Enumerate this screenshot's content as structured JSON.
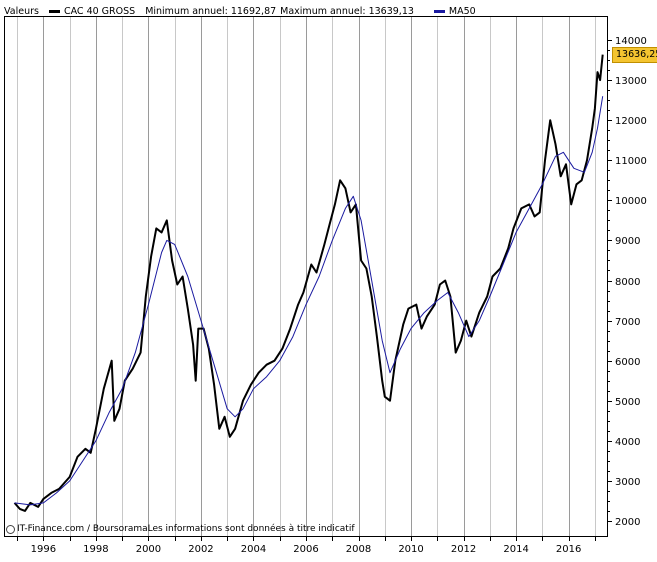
{
  "legend": {
    "label": "Valeurs",
    "series_name": "CAC 40 GROSS",
    "min_label": "Minimum annuel: 11692,87",
    "max_label": "Maximum annuel: 13639,13",
    "ma_name": "MA50",
    "series_color": "#000000",
    "ma_color": "#1a1aa0"
  },
  "last_value_badge": "13636,25",
  "copyright": "IT-Finance.com / BoursoramaLes informations sont données à titre indicatif",
  "chart_data": {
    "type": "line",
    "title": "",
    "xlabel": "",
    "ylabel": "",
    "xlim": [
      1994.5,
      2017.5
    ],
    "ylim": [
      1600,
      14600
    ],
    "y_axis_side": "right",
    "x_ticks": [
      1996,
      1998,
      2000,
      2002,
      2004,
      2006,
      2008,
      2010,
      2012,
      2014,
      2016
    ],
    "y_ticks": [
      2000,
      3000,
      4000,
      5000,
      6000,
      7000,
      8000,
      9000,
      10000,
      11000,
      12000,
      13000,
      14000
    ],
    "grid": "vertical",
    "legend_position": "top",
    "series": [
      {
        "name": "CAC 40 GROSS",
        "color": "#000000",
        "points": [
          [
            1994.9,
            2450
          ],
          [
            1995.1,
            2300
          ],
          [
            1995.3,
            2250
          ],
          [
            1995.5,
            2450
          ],
          [
            1995.8,
            2350
          ],
          [
            1996.0,
            2550
          ],
          [
            1996.3,
            2700
          ],
          [
            1996.6,
            2800
          ],
          [
            1997.0,
            3100
          ],
          [
            1997.3,
            3600
          ],
          [
            1997.6,
            3800
          ],
          [
            1997.8,
            3700
          ],
          [
            1998.0,
            4300
          ],
          [
            1998.3,
            5300
          ],
          [
            1998.6,
            6000
          ],
          [
            1998.7,
            4500
          ],
          [
            1998.9,
            4800
          ],
          [
            1999.1,
            5500
          ],
          [
            1999.4,
            5800
          ],
          [
            1999.7,
            6200
          ],
          [
            1999.9,
            7600
          ],
          [
            2000.1,
            8600
          ],
          [
            2000.3,
            9300
          ],
          [
            2000.5,
            9200
          ],
          [
            2000.7,
            9500
          ],
          [
            2000.9,
            8500
          ],
          [
            2001.1,
            7900
          ],
          [
            2001.3,
            8100
          ],
          [
            2001.5,
            7300
          ],
          [
            2001.7,
            6400
          ],
          [
            2001.8,
            5500
          ],
          [
            2001.9,
            6800
          ],
          [
            2002.1,
            6800
          ],
          [
            2002.3,
            6300
          ],
          [
            2002.5,
            5400
          ],
          [
            2002.7,
            4300
          ],
          [
            2002.9,
            4600
          ],
          [
            2003.1,
            4100
          ],
          [
            2003.3,
            4300
          ],
          [
            2003.6,
            5000
          ],
          [
            2003.9,
            5400
          ],
          [
            2004.2,
            5700
          ],
          [
            2004.5,
            5900
          ],
          [
            2004.8,
            6000
          ],
          [
            2005.1,
            6300
          ],
          [
            2005.4,
            6800
          ],
          [
            2005.7,
            7400
          ],
          [
            2005.9,
            7700
          ],
          [
            2006.2,
            8400
          ],
          [
            2006.4,
            8200
          ],
          [
            2006.7,
            8900
          ],
          [
            2006.9,
            9400
          ],
          [
            2007.1,
            9900
          ],
          [
            2007.3,
            10500
          ],
          [
            2007.5,
            10300
          ],
          [
            2007.7,
            9700
          ],
          [
            2007.9,
            9900
          ],
          [
            2008.1,
            8500
          ],
          [
            2008.3,
            8300
          ],
          [
            2008.5,
            7600
          ],
          [
            2008.7,
            6600
          ],
          [
            2008.9,
            5500
          ],
          [
            2009.0,
            5100
          ],
          [
            2009.2,
            5000
          ],
          [
            2009.4,
            6000
          ],
          [
            2009.7,
            6900
          ],
          [
            2009.9,
            7300
          ],
          [
            2010.2,
            7400
          ],
          [
            2010.4,
            6800
          ],
          [
            2010.6,
            7100
          ],
          [
            2010.9,
            7400
          ],
          [
            2011.1,
            7900
          ],
          [
            2011.3,
            8000
          ],
          [
            2011.5,
            7600
          ],
          [
            2011.7,
            6200
          ],
          [
            2011.9,
            6500
          ],
          [
            2012.1,
            7000
          ],
          [
            2012.3,
            6600
          ],
          [
            2012.6,
            7200
          ],
          [
            2012.9,
            7600
          ],
          [
            2013.1,
            8100
          ],
          [
            2013.4,
            8300
          ],
          [
            2013.7,
            8800
          ],
          [
            2013.9,
            9300
          ],
          [
            2014.2,
            9800
          ],
          [
            2014.5,
            9900
          ],
          [
            2014.7,
            9600
          ],
          [
            2014.9,
            9700
          ],
          [
            2015.1,
            11000
          ],
          [
            2015.3,
            12000
          ],
          [
            2015.5,
            11400
          ],
          [
            2015.7,
            10600
          ],
          [
            2015.9,
            10900
          ],
          [
            2016.1,
            9900
          ],
          [
            2016.3,
            10400
          ],
          [
            2016.5,
            10500
          ],
          [
            2016.7,
            11000
          ],
          [
            2016.9,
            11800
          ],
          [
            2017.0,
            12300
          ],
          [
            2017.1,
            13200
          ],
          [
            2017.2,
            13000
          ],
          [
            2017.3,
            13636
          ]
        ]
      },
      {
        "name": "MA50",
        "color": "#1a1aa0",
        "points": [
          [
            1994.9,
            2450
          ],
          [
            1995.5,
            2400
          ],
          [
            1996.0,
            2450
          ],
          [
            1996.5,
            2700
          ],
          [
            1997.0,
            3000
          ],
          [
            1997.5,
            3500
          ],
          [
            1998.0,
            4000
          ],
          [
            1998.5,
            4700
          ],
          [
            1999.0,
            5300
          ],
          [
            1999.5,
            6200
          ],
          [
            2000.0,
            7400
          ],
          [
            2000.5,
            8700
          ],
          [
            2000.7,
            9000
          ],
          [
            2001.0,
            8900
          ],
          [
            2001.5,
            8100
          ],
          [
            2002.0,
            7000
          ],
          [
            2002.5,
            5900
          ],
          [
            2003.0,
            4800
          ],
          [
            2003.3,
            4600
          ],
          [
            2003.6,
            4800
          ],
          [
            2004.0,
            5300
          ],
          [
            2004.5,
            5600
          ],
          [
            2005.0,
            6000
          ],
          [
            2005.5,
            6600
          ],
          [
            2006.0,
            7400
          ],
          [
            2006.5,
            8100
          ],
          [
            2007.0,
            9000
          ],
          [
            2007.5,
            9800
          ],
          [
            2007.8,
            10100
          ],
          [
            2008.1,
            9500
          ],
          [
            2008.5,
            8000
          ],
          [
            2008.9,
            6500
          ],
          [
            2009.2,
            5700
          ],
          [
            2009.6,
            6300
          ],
          [
            2010.0,
            6800
          ],
          [
            2010.5,
            7200
          ],
          [
            2011.0,
            7500
          ],
          [
            2011.4,
            7700
          ],
          [
            2011.8,
            7200
          ],
          [
            2012.2,
            6600
          ],
          [
            2012.6,
            7000
          ],
          [
            2013.0,
            7600
          ],
          [
            2013.5,
            8400
          ],
          [
            2014.0,
            9200
          ],
          [
            2014.5,
            9800
          ],
          [
            2015.0,
            10400
          ],
          [
            2015.5,
            11100
          ],
          [
            2015.8,
            11200
          ],
          [
            2016.2,
            10800
          ],
          [
            2016.6,
            10700
          ],
          [
            2016.9,
            11200
          ],
          [
            2017.1,
            11800
          ],
          [
            2017.3,
            12600
          ]
        ]
      }
    ]
  }
}
